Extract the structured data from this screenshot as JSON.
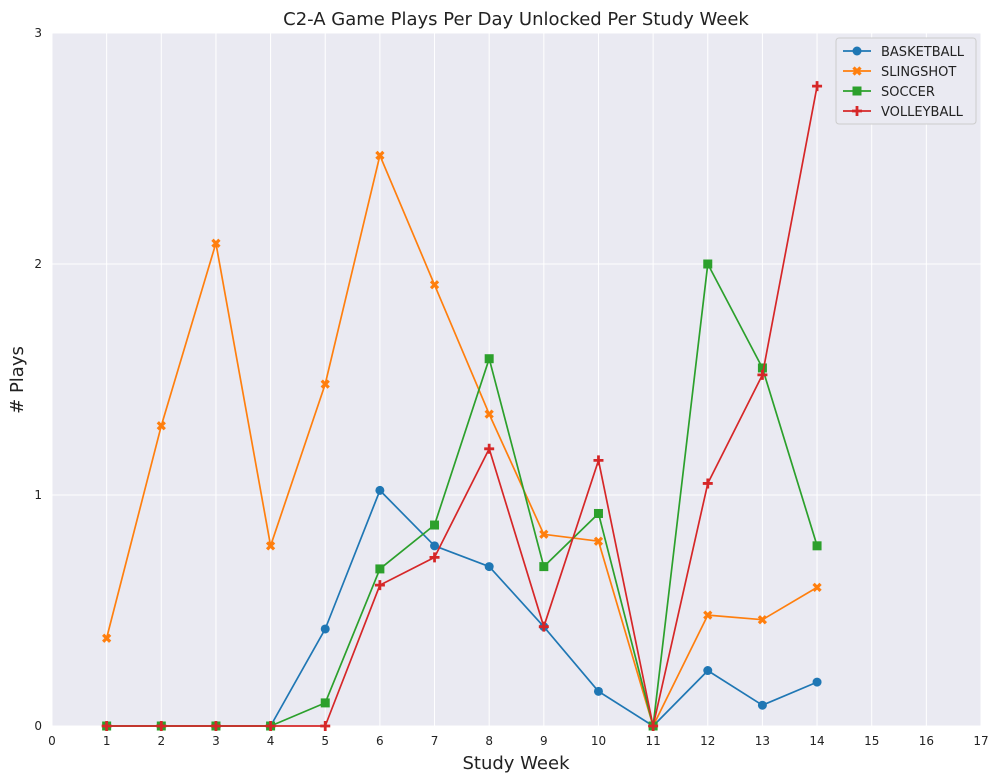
{
  "chart_data": {
    "type": "line",
    "title": "C2-A Game Plays Per Day Unlocked Per Study Week",
    "xlabel": "Study Week",
    "ylabel": "# Plays",
    "xlim": [
      0,
      17
    ],
    "ylim": [
      0,
      3
    ],
    "xticks": [
      "0",
      "1",
      "2",
      "3",
      "4",
      "5",
      "6",
      "7",
      "8",
      "9",
      "10",
      "11",
      "12",
      "13",
      "14",
      "15",
      "16",
      "17"
    ],
    "yticks": [
      "0",
      "1",
      "2",
      "3"
    ],
    "grid": true,
    "legend_position": "top-right",
    "x": [
      1,
      2,
      3,
      4,
      5,
      6,
      7,
      8,
      9,
      10,
      11,
      12,
      13,
      14
    ],
    "series": [
      {
        "name": "BASKETBALL",
        "color": "#1f77b4",
        "marker": "circle",
        "values": [
          0,
          0,
          0,
          0,
          0.42,
          1.02,
          0.78,
          0.69,
          0.43,
          0.15,
          0,
          0.24,
          0.09,
          0.19
        ]
      },
      {
        "name": "SLINGSHOT",
        "color": "#ff7f0e",
        "marker": "x",
        "values": [
          0.38,
          1.3,
          2.09,
          0.78,
          1.48,
          2.47,
          1.91,
          1.35,
          0.83,
          0.8,
          0,
          0.48,
          0.46,
          0.6
        ]
      },
      {
        "name": "SOCCER",
        "color": "#2ca02c",
        "marker": "square",
        "values": [
          0,
          0,
          0,
          0,
          0.1,
          0.68,
          0.87,
          1.59,
          0.69,
          0.92,
          0,
          2.0,
          1.55,
          0.78
        ]
      },
      {
        "name": "VOLLEYBALL",
        "color": "#d62728",
        "marker": "plus",
        "values": [
          0,
          0,
          0,
          0,
          0,
          0.61,
          0.73,
          1.2,
          0.43,
          1.15,
          0,
          1.05,
          1.52,
          2.77
        ]
      }
    ]
  }
}
